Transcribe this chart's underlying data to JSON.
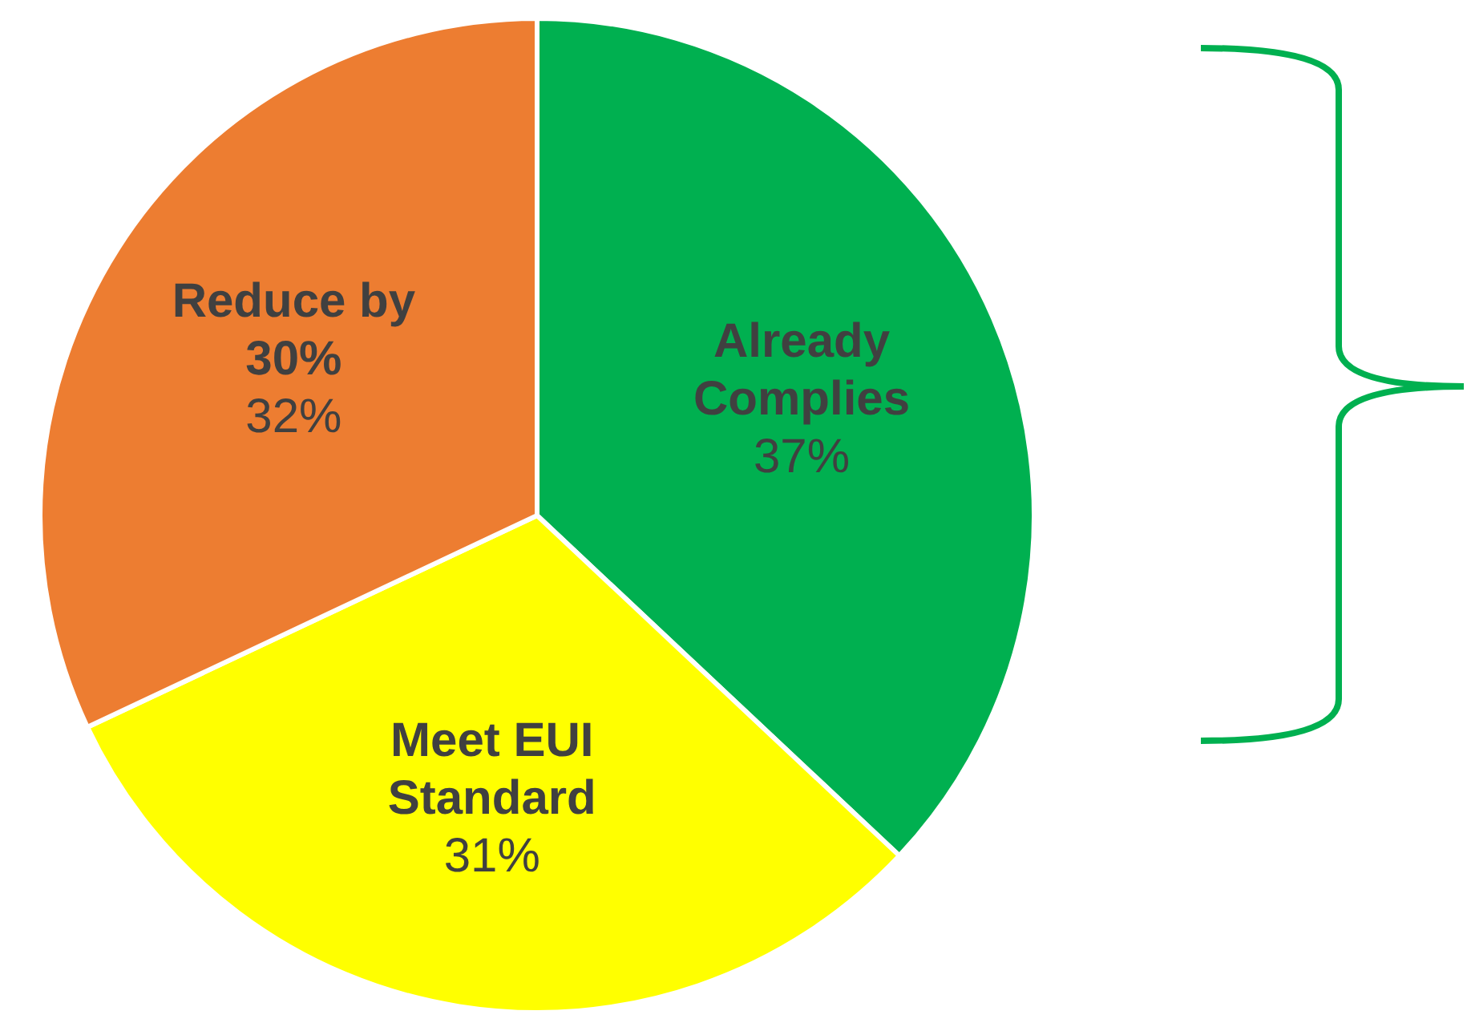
{
  "chart_data": {
    "type": "pie",
    "categories": [
      "Already Complies",
      "Meet EUI Standard",
      "Reduce by 30%"
    ],
    "values": [
      37,
      31,
      32
    ],
    "colors": [
      "#00b050",
      "#ffff00",
      "#ed7d31"
    ],
    "value_labels": [
      "37%",
      "31%",
      "32%"
    ],
    "legend": false
  }
}
